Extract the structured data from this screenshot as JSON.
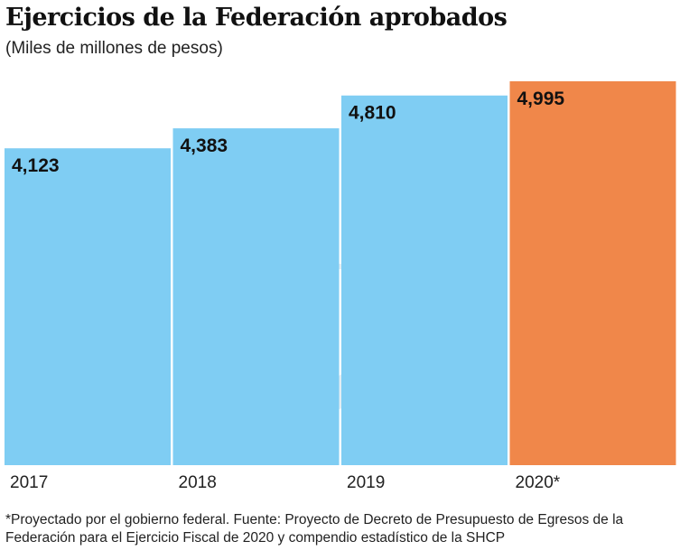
{
  "chart_data": {
    "type": "bar",
    "title": "Ejercicios de la Federación aprobados",
    "subtitle": "(Miles de millones de pesos)",
    "categories": [
      "2017",
      "2018",
      "2019",
      "2020*"
    ],
    "values": [
      4123,
      4383,
      4810,
      4995
    ],
    "value_labels": [
      "4,123",
      "4,383",
      "4,810",
      "4,995"
    ],
    "colors": [
      "#7fcdf3",
      "#7fcdf3",
      "#7fcdf3",
      "#f0874a"
    ],
    "ylim": [
      0,
      4995
    ],
    "grid": false,
    "footnote": "*Proyectado por el gobierno federal. Fuente: Proyecto de Decreto de Presupuesto de Egresos de la Federación para el Ejercicio Fiscal de 2020 y compendio estadístico de la SHCP"
  }
}
